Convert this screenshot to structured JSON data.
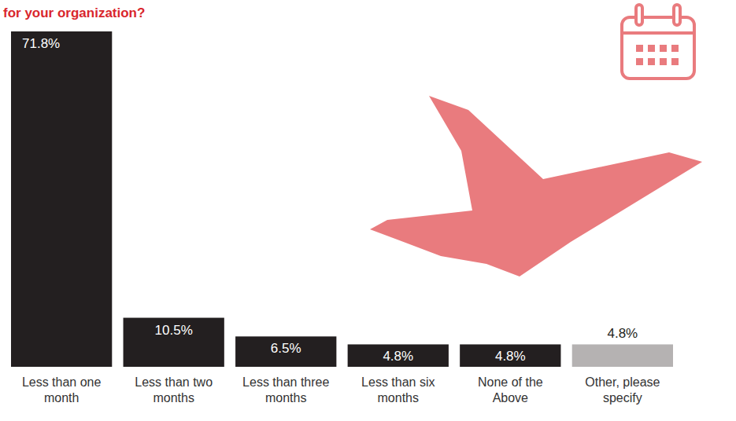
{
  "chart_data": {
    "type": "bar",
    "title": "for your organization?",
    "categories": [
      "Less than one month",
      "Less than two months",
      "Less than three months",
      "Less than six months",
      "None of the Above",
      "Other, please specify"
    ],
    "values": [
      71.8,
      10.5,
      6.5,
      4.8,
      4.8,
      4.8
    ],
    "value_labels": [
      "71.8%",
      "10.5%",
      "6.5%",
      "4.8%",
      "4.8%",
      "4.8%"
    ],
    "colors": [
      "#231f20",
      "#231f20",
      "#231f20",
      "#231f20",
      "#231f20",
      "#b5b2b2"
    ],
    "data_labels": true,
    "tick_labels": "x"
  }
}
